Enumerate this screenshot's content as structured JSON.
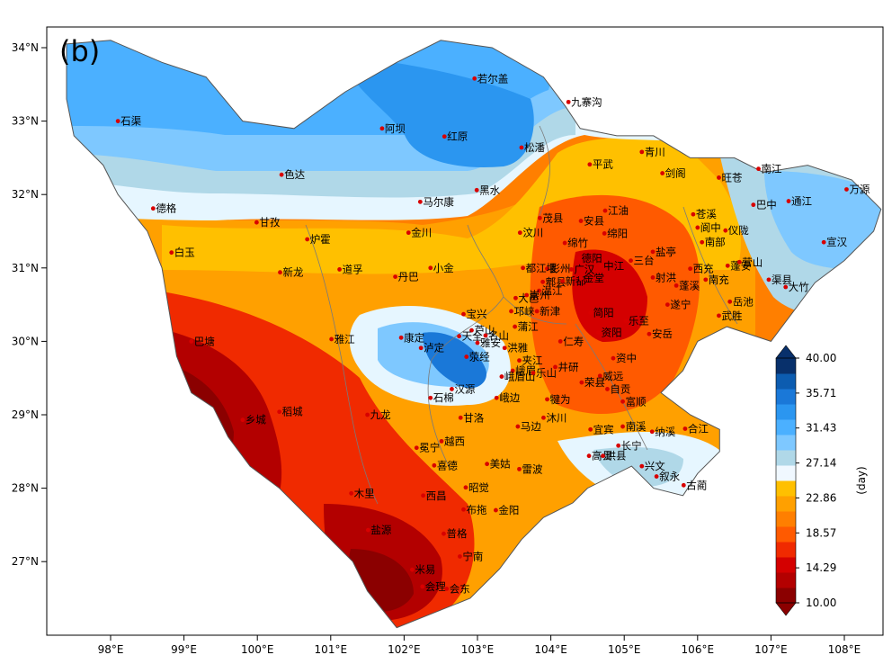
{
  "panel_label": "(b)",
  "lat_ticks": [
    "34°N",
    "33°N",
    "32°N",
    "31°N",
    "30°N",
    "29°N",
    "28°N",
    "27°N"
  ],
  "lon_ticks": [
    "98°E",
    "99°E",
    "100°E",
    "101°E",
    "102°E",
    "103°E",
    "104°E",
    "105°E",
    "106°E",
    "107°E",
    "108°E"
  ],
  "colorbar": {
    "min": 10.0,
    "max": 40.0,
    "unit": "(day)",
    "tick_labels": [
      "10.00",
      "14.29",
      "18.57",
      "22.86",
      "27.14",
      "31.43",
      "35.71",
      "40.00"
    ],
    "colors": [
      "#8b0000",
      "#b30000",
      "#d40000",
      "#f02a00",
      "#ff5a00",
      "#ff7f00",
      "#ffa000",
      "#ffc000",
      "#f0f8ff",
      "#b0d8e8",
      "#7ec8ff",
      "#4bb0ff",
      "#2b96f0",
      "#1a78d8",
      "#0c5cb0",
      "#08306b"
    ]
  },
  "cities": [
    {
      "name": "石渠",
      "lon": 98.1,
      "lat": 33.0
    },
    {
      "name": "若尔盖",
      "lon": 102.96,
      "lat": 33.58
    },
    {
      "name": "九寨沟",
      "lon": 104.24,
      "lat": 33.26
    },
    {
      "name": "阿坝",
      "lon": 101.7,
      "lat": 32.9
    },
    {
      "name": "红原",
      "lon": 102.55,
      "lat": 32.79
    },
    {
      "name": "松潘",
      "lon": 103.6,
      "lat": 32.64
    },
    {
      "name": "色达",
      "lon": 100.33,
      "lat": 32.27
    },
    {
      "name": "青川",
      "lon": 105.24,
      "lat": 32.58
    },
    {
      "name": "平武",
      "lon": 104.53,
      "lat": 32.41
    },
    {
      "name": "旺苍",
      "lon": 106.29,
      "lat": 32.23
    },
    {
      "name": "南江",
      "lon": 106.83,
      "lat": 32.35
    },
    {
      "name": "德格",
      "lon": 98.58,
      "lat": 31.81
    },
    {
      "name": "马尔康",
      "lon": 102.22,
      "lat": 31.9
    },
    {
      "name": "黑水",
      "lon": 102.99,
      "lat": 32.06
    },
    {
      "name": "剑阁",
      "lon": 105.52,
      "lat": 32.29
    },
    {
      "name": "万源",
      "lon": 108.03,
      "lat": 32.07
    },
    {
      "name": "通江",
      "lon": 107.24,
      "lat": 31.91
    },
    {
      "name": "巴中",
      "lon": 106.76,
      "lat": 31.86
    },
    {
      "name": "苍溪",
      "lon": 105.94,
      "lat": 31.73
    },
    {
      "name": "江油",
      "lon": 104.74,
      "lat": 31.78
    },
    {
      "name": "甘孜",
      "lon": 99.99,
      "lat": 31.62
    },
    {
      "name": "茂县",
      "lon": 103.85,
      "lat": 31.68
    },
    {
      "name": "安县",
      "lon": 104.41,
      "lat": 31.64
    },
    {
      "name": "阆中",
      "lon": 106.0,
      "lat": 31.55
    },
    {
      "name": "仪陇",
      "lon": 106.38,
      "lat": 31.51
    },
    {
      "name": "宣汉",
      "lon": 107.72,
      "lat": 31.35
    },
    {
      "name": "炉霍",
      "lon": 100.68,
      "lat": 31.39
    },
    {
      "name": "金川",
      "lon": 102.06,
      "lat": 31.48
    },
    {
      "name": "汶川",
      "lon": 103.58,
      "lat": 31.48
    },
    {
      "name": "绵竹",
      "lon": 104.19,
      "lat": 31.34
    },
    {
      "name": "绵阳",
      "lon": 104.73,
      "lat": 31.47
    },
    {
      "name": "盐亭",
      "lon": 105.39,
      "lat": 31.22
    },
    {
      "name": "南部",
      "lon": 106.06,
      "lat": 31.35
    },
    {
      "name": "蓬安",
      "lon": 106.41,
      "lat": 31.03
    },
    {
      "name": "白玉",
      "lon": 98.83,
      "lat": 31.21
    },
    {
      "name": "彭州",
      "lon": 103.95,
      "lat": 30.99
    },
    {
      "name": "德阳",
      "lon": 104.38,
      "lat": 31.13
    },
    {
      "name": "三台",
      "lon": 105.09,
      "lat": 31.1
    },
    {
      "name": "营山",
      "lon": 106.57,
      "lat": 31.08
    },
    {
      "name": "新龙",
      "lon": 100.31,
      "lat": 30.94
    },
    {
      "name": "道孚",
      "lon": 101.12,
      "lat": 30.98
    },
    {
      "name": "小金",
      "lon": 102.36,
      "lat": 31.0
    },
    {
      "name": "丹巴",
      "lon": 101.88,
      "lat": 30.88
    },
    {
      "name": "都江堰",
      "lon": 103.62,
      "lat": 31.0
    },
    {
      "name": "广汉",
      "lon": 104.28,
      "lat": 30.98
    },
    {
      "name": "中江",
      "lon": 104.68,
      "lat": 31.03
    },
    {
      "name": "西充",
      "lon": 105.9,
      "lat": 30.99
    },
    {
      "name": "郫县",
      "lon": 103.89,
      "lat": 30.81
    },
    {
      "name": "射洪",
      "lon": 105.39,
      "lat": 30.87
    },
    {
      "name": "南充",
      "lon": 106.11,
      "lat": 30.84
    },
    {
      "name": "渠县",
      "lon": 106.97,
      "lat": 30.84
    },
    {
      "name": "大竹",
      "lon": 107.2,
      "lat": 30.74
    },
    {
      "name": "大邑",
      "lon": 103.52,
      "lat": 30.59
    },
    {
      "name": "温江",
      "lon": 103.84,
      "lat": 30.69
    },
    {
      "name": "新都",
      "lon": 104.16,
      "lat": 30.82
    },
    {
      "name": "金堂",
      "lon": 104.41,
      "lat": 30.86
    },
    {
      "name": "蓬溪",
      "lon": 105.71,
      "lat": 30.76
    },
    {
      "name": "岳池",
      "lon": 106.44,
      "lat": 30.54
    },
    {
      "name": "宝兴",
      "lon": 102.81,
      "lat": 30.37
    },
    {
      "name": "邛崃",
      "lon": 103.46,
      "lat": 30.41
    },
    {
      "name": "崇州",
      "lon": 103.67,
      "lat": 30.63
    },
    {
      "name": "简阳",
      "lon": 104.54,
      "lat": 30.39
    },
    {
      "name": "遂宁",
      "lon": 105.59,
      "lat": 30.5
    },
    {
      "name": "芦山",
      "lon": 102.92,
      "lat": 30.15
    },
    {
      "name": "新津",
      "lon": 103.81,
      "lat": 30.41
    },
    {
      "name": "乐至",
      "lon": 105.02,
      "lat": 30.28
    },
    {
      "name": "武胜",
      "lon": 106.29,
      "lat": 30.35
    },
    {
      "name": "巴塘",
      "lon": 99.1,
      "lat": 30.0
    },
    {
      "name": "雅江",
      "lon": 101.01,
      "lat": 30.03
    },
    {
      "name": "康定",
      "lon": 101.96,
      "lat": 30.05
    },
    {
      "name": "天全",
      "lon": 102.75,
      "lat": 30.07
    },
    {
      "name": "名山",
      "lon": 103.11,
      "lat": 30.08
    },
    {
      "name": "蒲江",
      "lon": 103.51,
      "lat": 30.2
    },
    {
      "name": "仁寿",
      "lon": 104.13,
      "lat": 30.0
    },
    {
      "name": "资阳",
      "lon": 104.65,
      "lat": 30.12
    },
    {
      "name": "安岳",
      "lon": 105.34,
      "lat": 30.1
    },
    {
      "name": "泸定",
      "lon": 102.23,
      "lat": 29.91
    },
    {
      "name": "雅安",
      "lon": 103.0,
      "lat": 29.98
    },
    {
      "name": "洪雅",
      "lon": 103.37,
      "lat": 29.91
    },
    {
      "name": "夹江",
      "lon": 103.57,
      "lat": 29.74
    },
    {
      "name": "资中",
      "lon": 104.85,
      "lat": 29.77
    },
    {
      "name": "荥经",
      "lon": 102.85,
      "lat": 29.79
    },
    {
      "name": "峨眉",
      "lon": 103.48,
      "lat": 29.6
    },
    {
      "name": "井研",
      "lon": 104.06,
      "lat": 29.65
    },
    {
      "name": "威远",
      "lon": 104.67,
      "lat": 29.53
    },
    {
      "name": "汉源",
      "lon": 102.65,
      "lat": 29.35
    },
    {
      "name": "峨眉山",
      "lon": 103.33,
      "lat": 29.52
    },
    {
      "name": "乐山",
      "lon": 103.76,
      "lat": 29.57
    },
    {
      "name": "荣县",
      "lon": 104.42,
      "lat": 29.44
    },
    {
      "name": "自贡",
      "lon": 104.77,
      "lat": 29.35
    },
    {
      "name": "石棉",
      "lon": 102.36,
      "lat": 29.23
    },
    {
      "name": "峨边",
      "lon": 103.26,
      "lat": 29.23
    },
    {
      "name": "犍为",
      "lon": 103.95,
      "lat": 29.21
    },
    {
      "name": "富顺",
      "lon": 104.98,
      "lat": 29.18
    },
    {
      "name": "九龙",
      "lon": 101.5,
      "lat": 29.0
    },
    {
      "name": "稻城",
      "lon": 100.3,
      "lat": 29.04
    },
    {
      "name": "甘洛",
      "lon": 102.77,
      "lat": 28.96
    },
    {
      "name": "马边",
      "lon": 103.55,
      "lat": 28.84
    },
    {
      "name": "沐川",
      "lon": 103.9,
      "lat": 28.96
    },
    {
      "name": "宜宾",
      "lon": 104.54,
      "lat": 28.8
    },
    {
      "name": "南溪",
      "lon": 104.98,
      "lat": 28.84
    },
    {
      "name": "纳溪",
      "lon": 105.38,
      "lat": 28.77
    },
    {
      "name": "合江",
      "lon": 105.83,
      "lat": 28.81
    },
    {
      "name": "乡城",
      "lon": 99.8,
      "lat": 28.93
    },
    {
      "name": "冕宁",
      "lon": 102.17,
      "lat": 28.55
    },
    {
      "name": "越西",
      "lon": 102.51,
      "lat": 28.64
    },
    {
      "name": "高县",
      "lon": 104.52,
      "lat": 28.44
    },
    {
      "name": "长宁",
      "lon": 104.92,
      "lat": 28.58
    },
    {
      "name": "美姑",
      "lon": 103.13,
      "lat": 28.33
    },
    {
      "name": "雷波",
      "lon": 103.57,
      "lat": 28.26
    },
    {
      "name": "喜德",
      "lon": 102.41,
      "lat": 28.31
    },
    {
      "name": "珙县",
      "lon": 104.71,
      "lat": 28.44
    },
    {
      "name": "兴文",
      "lon": 105.24,
      "lat": 28.3
    },
    {
      "name": "叙永",
      "lon": 105.44,
      "lat": 28.16
    },
    {
      "name": "古蔺",
      "lon": 105.81,
      "lat": 28.04
    },
    {
      "name": "昭觉",
      "lon": 102.84,
      "lat": 28.01
    },
    {
      "name": "木里",
      "lon": 101.28,
      "lat": 27.93
    },
    {
      "name": "西昌",
      "lon": 102.26,
      "lat": 27.9
    },
    {
      "name": "布拖",
      "lon": 102.81,
      "lat": 27.71
    },
    {
      "name": "金阳",
      "lon": 103.25,
      "lat": 27.7
    },
    {
      "name": "盐源",
      "lon": 101.51,
      "lat": 27.43
    },
    {
      "name": "普格",
      "lon": 102.54,
      "lat": 27.38
    },
    {
      "name": "宁南",
      "lon": 102.76,
      "lat": 27.07
    },
    {
      "name": "米易",
      "lon": 102.11,
      "lat": 26.89
    },
    {
      "name": "会理",
      "lon": 102.25,
      "lat": 26.66
    },
    {
      "name": "会东",
      "lon": 102.58,
      "lat": 26.63
    }
  ]
}
